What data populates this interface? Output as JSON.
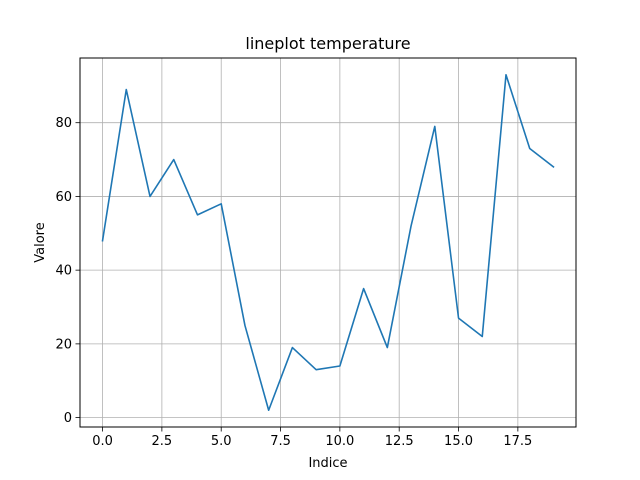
{
  "chart_data": {
    "type": "line",
    "title": "lineplot temperature",
    "xlabel": "Indice",
    "ylabel": "Valore",
    "x": [
      0,
      1,
      2,
      3,
      4,
      5,
      6,
      7,
      8,
      9,
      10,
      11,
      12,
      13,
      14,
      15,
      16,
      17,
      18,
      19
    ],
    "series": [
      {
        "values": [
          48,
          89,
          60,
          70,
          55,
          58,
          25,
          2,
          19,
          13,
          14,
          35,
          19,
          52,
          79,
          27,
          22,
          93,
          73,
          68
        ]
      }
    ],
    "xlim": [
      -0.95,
      19.95
    ],
    "ylim": [
      -2.55,
      97.55
    ],
    "xticks": [
      0,
      2.5,
      5,
      7.5,
      10,
      12.5,
      15,
      17.5
    ],
    "xtick_labels": [
      "0.0",
      "2.5",
      "5.0",
      "7.5",
      "10.0",
      "12.5",
      "15.0",
      "17.5"
    ],
    "yticks": [
      0,
      20,
      40,
      60,
      80
    ],
    "ytick_labels": [
      "0",
      "20",
      "40",
      "60",
      "80"
    ],
    "grid": true,
    "line_color": "#1f77b4",
    "grid_color": "#b0b0b0"
  }
}
